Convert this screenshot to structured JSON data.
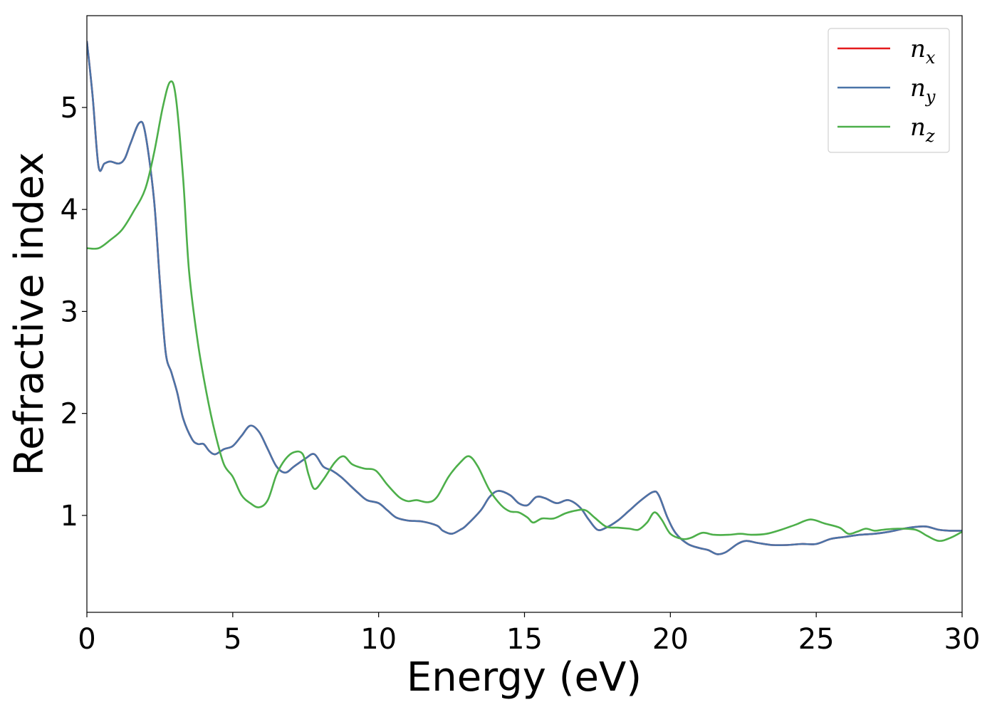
{
  "chart_data": {
    "type": "line",
    "title": "",
    "xlabel": "Energy (eV)",
    "ylabel": "Refractive index",
    "xlim": [
      0,
      30
    ],
    "ylim": [
      0.05,
      5.9
    ],
    "xticks": [
      0,
      5,
      10,
      15,
      20,
      25,
      30
    ],
    "yticks": [
      1,
      2,
      3,
      4,
      5
    ],
    "grid": false,
    "legend_position": "top-right",
    "series": [
      {
        "name": "n_x",
        "label_base": "n",
        "label_sub": "x",
        "color": "#e41a1c",
        "points": [
          [
            0,
            5.65
          ],
          [
            0.2,
            5.1
          ],
          [
            0.4,
            4.42
          ],
          [
            0.6,
            4.45
          ],
          [
            0.8,
            4.47
          ],
          [
            1.1,
            4.45
          ],
          [
            1.3,
            4.5
          ],
          [
            1.5,
            4.65
          ],
          [
            1.8,
            4.85
          ],
          [
            2.0,
            4.75
          ],
          [
            2.3,
            4.1
          ],
          [
            2.5,
            3.3
          ],
          [
            2.7,
            2.6
          ],
          [
            2.9,
            2.4
          ],
          [
            3.1,
            2.2
          ],
          [
            3.3,
            1.95
          ],
          [
            3.6,
            1.75
          ],
          [
            3.8,
            1.7
          ],
          [
            4.0,
            1.7
          ],
          [
            4.2,
            1.63
          ],
          [
            4.4,
            1.6
          ],
          [
            4.7,
            1.65
          ],
          [
            5.0,
            1.68
          ],
          [
            5.3,
            1.78
          ],
          [
            5.6,
            1.88
          ],
          [
            5.9,
            1.82
          ],
          [
            6.2,
            1.65
          ],
          [
            6.5,
            1.48
          ],
          [
            6.8,
            1.42
          ],
          [
            7.1,
            1.48
          ],
          [
            7.5,
            1.56
          ],
          [
            7.8,
            1.6
          ],
          [
            8.1,
            1.48
          ],
          [
            8.4,
            1.44
          ],
          [
            8.7,
            1.38
          ],
          [
            9.0,
            1.3
          ],
          [
            9.3,
            1.22
          ],
          [
            9.6,
            1.15
          ],
          [
            10.0,
            1.12
          ],
          [
            10.3,
            1.05
          ],
          [
            10.6,
            0.98
          ],
          [
            11.0,
            0.95
          ],
          [
            11.5,
            0.94
          ],
          [
            12.0,
            0.9
          ],
          [
            12.2,
            0.85
          ],
          [
            12.5,
            0.82
          ],
          [
            12.8,
            0.86
          ],
          [
            13.0,
            0.9
          ],
          [
            13.5,
            1.05
          ],
          [
            13.8,
            1.18
          ],
          [
            14.1,
            1.24
          ],
          [
            14.5,
            1.2
          ],
          [
            14.8,
            1.12
          ],
          [
            15.1,
            1.1
          ],
          [
            15.4,
            1.18
          ],
          [
            15.7,
            1.17
          ],
          [
            16.1,
            1.12
          ],
          [
            16.5,
            1.15
          ],
          [
            16.9,
            1.08
          ],
          [
            17.2,
            0.96
          ],
          [
            17.5,
            0.86
          ],
          [
            17.8,
            0.88
          ],
          [
            18.2,
            0.95
          ],
          [
            18.6,
            1.05
          ],
          [
            19.0,
            1.15
          ],
          [
            19.4,
            1.23
          ],
          [
            19.6,
            1.2
          ],
          [
            19.9,
            0.98
          ],
          [
            20.2,
            0.82
          ],
          [
            20.6,
            0.72
          ],
          [
            21.0,
            0.68
          ],
          [
            21.3,
            0.66
          ],
          [
            21.6,
            0.62
          ],
          [
            21.9,
            0.64
          ],
          [
            22.3,
            0.72
          ],
          [
            22.6,
            0.75
          ],
          [
            23.0,
            0.73
          ],
          [
            23.5,
            0.71
          ],
          [
            24.0,
            0.71
          ],
          [
            24.5,
            0.72
          ],
          [
            25.0,
            0.72
          ],
          [
            25.5,
            0.77
          ],
          [
            26.0,
            0.79
          ],
          [
            26.5,
            0.81
          ],
          [
            27.0,
            0.82
          ],
          [
            27.5,
            0.84
          ],
          [
            28.0,
            0.87
          ],
          [
            28.5,
            0.89
          ],
          [
            28.8,
            0.89
          ],
          [
            29.2,
            0.86
          ],
          [
            29.6,
            0.85
          ],
          [
            30.0,
            0.85
          ]
        ]
      },
      {
        "name": "n_y",
        "label_base": "n",
        "label_sub": "y",
        "color": "#4a74a8",
        "points": [
          [
            0,
            5.65
          ],
          [
            0.2,
            5.1
          ],
          [
            0.4,
            4.42
          ],
          [
            0.6,
            4.45
          ],
          [
            0.8,
            4.47
          ],
          [
            1.1,
            4.45
          ],
          [
            1.3,
            4.5
          ],
          [
            1.5,
            4.65
          ],
          [
            1.8,
            4.85
          ],
          [
            2.0,
            4.75
          ],
          [
            2.3,
            4.1
          ],
          [
            2.5,
            3.3
          ],
          [
            2.7,
            2.6
          ],
          [
            2.9,
            2.4
          ],
          [
            3.1,
            2.2
          ],
          [
            3.3,
            1.95
          ],
          [
            3.6,
            1.75
          ],
          [
            3.8,
            1.7
          ],
          [
            4.0,
            1.7
          ],
          [
            4.2,
            1.63
          ],
          [
            4.4,
            1.6
          ],
          [
            4.7,
            1.65
          ],
          [
            5.0,
            1.68
          ],
          [
            5.3,
            1.78
          ],
          [
            5.6,
            1.88
          ],
          [
            5.9,
            1.82
          ],
          [
            6.2,
            1.65
          ],
          [
            6.5,
            1.48
          ],
          [
            6.8,
            1.42
          ],
          [
            7.1,
            1.48
          ],
          [
            7.5,
            1.56
          ],
          [
            7.8,
            1.6
          ],
          [
            8.1,
            1.48
          ],
          [
            8.4,
            1.44
          ],
          [
            8.7,
            1.38
          ],
          [
            9.0,
            1.3
          ],
          [
            9.3,
            1.22
          ],
          [
            9.6,
            1.15
          ],
          [
            10.0,
            1.12
          ],
          [
            10.3,
            1.05
          ],
          [
            10.6,
            0.98
          ],
          [
            11.0,
            0.95
          ],
          [
            11.5,
            0.94
          ],
          [
            12.0,
            0.9
          ],
          [
            12.2,
            0.85
          ],
          [
            12.5,
            0.82
          ],
          [
            12.8,
            0.86
          ],
          [
            13.0,
            0.9
          ],
          [
            13.5,
            1.05
          ],
          [
            13.8,
            1.18
          ],
          [
            14.1,
            1.24
          ],
          [
            14.5,
            1.2
          ],
          [
            14.8,
            1.12
          ],
          [
            15.1,
            1.1
          ],
          [
            15.4,
            1.18
          ],
          [
            15.7,
            1.17
          ],
          [
            16.1,
            1.12
          ],
          [
            16.5,
            1.15
          ],
          [
            16.9,
            1.08
          ],
          [
            17.2,
            0.96
          ],
          [
            17.5,
            0.86
          ],
          [
            17.8,
            0.88
          ],
          [
            18.2,
            0.95
          ],
          [
            18.6,
            1.05
          ],
          [
            19.0,
            1.15
          ],
          [
            19.4,
            1.23
          ],
          [
            19.6,
            1.2
          ],
          [
            19.9,
            0.98
          ],
          [
            20.2,
            0.82
          ],
          [
            20.6,
            0.72
          ],
          [
            21.0,
            0.68
          ],
          [
            21.3,
            0.66
          ],
          [
            21.6,
            0.62
          ],
          [
            21.9,
            0.64
          ],
          [
            22.3,
            0.72
          ],
          [
            22.6,
            0.75
          ],
          [
            23.0,
            0.73
          ],
          [
            23.5,
            0.71
          ],
          [
            24.0,
            0.71
          ],
          [
            24.5,
            0.72
          ],
          [
            25.0,
            0.72
          ],
          [
            25.5,
            0.77
          ],
          [
            26.0,
            0.79
          ],
          [
            26.5,
            0.81
          ],
          [
            27.0,
            0.82
          ],
          [
            27.5,
            0.84
          ],
          [
            28.0,
            0.87
          ],
          [
            28.5,
            0.89
          ],
          [
            28.8,
            0.89
          ],
          [
            29.2,
            0.86
          ],
          [
            29.6,
            0.85
          ],
          [
            30.0,
            0.85
          ]
        ]
      },
      {
        "name": "n_z",
        "label_base": "n",
        "label_sub": "z",
        "color": "#4daf4a",
        "points": [
          [
            0,
            3.62
          ],
          [
            0.4,
            3.62
          ],
          [
            0.8,
            3.7
          ],
          [
            1.2,
            3.8
          ],
          [
            1.6,
            3.98
          ],
          [
            2.0,
            4.2
          ],
          [
            2.3,
            4.55
          ],
          [
            2.6,
            5.0
          ],
          [
            2.85,
            5.25
          ],
          [
            3.05,
            5.1
          ],
          [
            3.3,
            4.3
          ],
          [
            3.5,
            3.4
          ],
          [
            3.8,
            2.7
          ],
          [
            4.1,
            2.2
          ],
          [
            4.4,
            1.8
          ],
          [
            4.7,
            1.5
          ],
          [
            5.0,
            1.38
          ],
          [
            5.3,
            1.2
          ],
          [
            5.6,
            1.12
          ],
          [
            5.9,
            1.08
          ],
          [
            6.2,
            1.15
          ],
          [
            6.5,
            1.4
          ],
          [
            6.8,
            1.55
          ],
          [
            7.1,
            1.62
          ],
          [
            7.4,
            1.6
          ],
          [
            7.6,
            1.4
          ],
          [
            7.8,
            1.26
          ],
          [
            8.1,
            1.35
          ],
          [
            8.5,
            1.52
          ],
          [
            8.8,
            1.58
          ],
          [
            9.1,
            1.5
          ],
          [
            9.5,
            1.46
          ],
          [
            9.9,
            1.44
          ],
          [
            10.3,
            1.3
          ],
          [
            10.7,
            1.18
          ],
          [
            11.0,
            1.14
          ],
          [
            11.3,
            1.15
          ],
          [
            11.7,
            1.13
          ],
          [
            12.0,
            1.18
          ],
          [
            12.4,
            1.38
          ],
          [
            12.8,
            1.52
          ],
          [
            13.1,
            1.58
          ],
          [
            13.4,
            1.48
          ],
          [
            13.8,
            1.25
          ],
          [
            14.2,
            1.1
          ],
          [
            14.5,
            1.04
          ],
          [
            14.8,
            1.03
          ],
          [
            15.1,
            0.98
          ],
          [
            15.3,
            0.93
          ],
          [
            15.6,
            0.97
          ],
          [
            16.0,
            0.97
          ],
          [
            16.4,
            1.02
          ],
          [
            16.8,
            1.05
          ],
          [
            17.1,
            1.05
          ],
          [
            17.4,
            0.98
          ],
          [
            17.8,
            0.89
          ],
          [
            18.2,
            0.88
          ],
          [
            18.6,
            0.87
          ],
          [
            18.9,
            0.86
          ],
          [
            19.2,
            0.93
          ],
          [
            19.45,
            1.03
          ],
          [
            19.7,
            0.96
          ],
          [
            20.0,
            0.82
          ],
          [
            20.4,
            0.77
          ],
          [
            20.7,
            0.78
          ],
          [
            21.1,
            0.83
          ],
          [
            21.5,
            0.81
          ],
          [
            22.0,
            0.81
          ],
          [
            22.4,
            0.82
          ],
          [
            22.8,
            0.81
          ],
          [
            23.3,
            0.82
          ],
          [
            23.8,
            0.86
          ],
          [
            24.3,
            0.91
          ],
          [
            24.8,
            0.96
          ],
          [
            25.3,
            0.92
          ],
          [
            25.8,
            0.88
          ],
          [
            26.1,
            0.82
          ],
          [
            26.4,
            0.84
          ],
          [
            26.7,
            0.87
          ],
          [
            27.0,
            0.85
          ],
          [
            27.3,
            0.86
          ],
          [
            27.8,
            0.87
          ],
          [
            28.4,
            0.86
          ],
          [
            28.8,
            0.8
          ],
          [
            29.2,
            0.75
          ],
          [
            29.6,
            0.78
          ],
          [
            30.0,
            0.84
          ]
        ]
      }
    ]
  }
}
